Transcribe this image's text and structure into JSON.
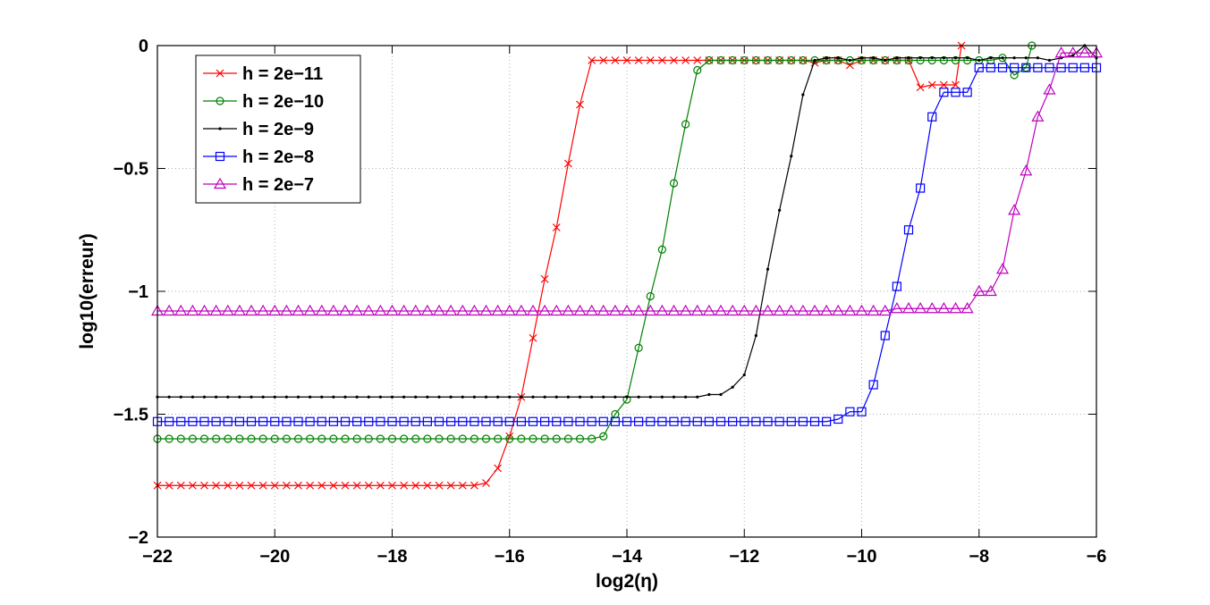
{
  "chart_data": {
    "type": "line",
    "title": "",
    "xlabel": "log2(η)",
    "ylabel": "log10(erreur)",
    "xlim": [
      -22,
      -6
    ],
    "ylim": [
      -2,
      0
    ],
    "xticks": [
      -22,
      -20,
      -18,
      -16,
      -14,
      -12,
      -10,
      -8,
      -6
    ],
    "yticks": [
      0,
      -0.5,
      -1,
      -1.5,
      -2
    ],
    "xtick_labels": [
      "−22",
      "−20",
      "−18",
      "−16",
      "−14",
      "−12",
      "−10",
      "−8",
      "−6"
    ],
    "ytick_labels": [
      "0",
      "−0.5",
      "−1",
      "−1.5",
      "−2"
    ],
    "grid": true,
    "legend_position": "top-left",
    "series": [
      {
        "name": "h = 2e−11",
        "color": "#ff0000",
        "marker": "x",
        "x": [
          -22,
          -21.8,
          -21.6,
          -21.4,
          -21.2,
          -21,
          -20.8,
          -20.6,
          -20.4,
          -20.2,
          -20,
          -19.8,
          -19.6,
          -19.4,
          -19.2,
          -19,
          -18.8,
          -18.6,
          -18.4,
          -18.2,
          -18,
          -17.8,
          -17.6,
          -17.4,
          -17.2,
          -17,
          -16.8,
          -16.6,
          -16.4,
          -16.2,
          -16,
          -15.8,
          -15.6,
          -15.4,
          -15.2,
          -15,
          -14.8,
          -14.6,
          -14.4,
          -14.2,
          -14,
          -13.8,
          -13.6,
          -13.4,
          -13.2,
          -13,
          -12.8,
          -12.6,
          -12.4,
          -12.2,
          -12,
          -11.8,
          -11.6,
          -11.4,
          -11.2,
          -11,
          -10.8,
          -10.6,
          -10.4,
          -10.2,
          -10,
          -9.8,
          -9.6,
          -9.4,
          -9.2,
          -9,
          -8.8,
          -8.6,
          -8.4,
          -8.3
        ],
        "y": [
          -1.79,
          -1.79,
          -1.79,
          -1.79,
          -1.79,
          -1.79,
          -1.79,
          -1.79,
          -1.79,
          -1.79,
          -1.79,
          -1.79,
          -1.79,
          -1.79,
          -1.79,
          -1.79,
          -1.79,
          -1.79,
          -1.79,
          -1.79,
          -1.79,
          -1.79,
          -1.79,
          -1.79,
          -1.79,
          -1.79,
          -1.79,
          -1.79,
          -1.78,
          -1.72,
          -1.59,
          -1.43,
          -1.19,
          -0.95,
          -0.74,
          -0.48,
          -0.24,
          -0.06,
          -0.06,
          -0.06,
          -0.06,
          -0.06,
          -0.06,
          -0.06,
          -0.06,
          -0.06,
          -0.06,
          -0.06,
          -0.06,
          -0.06,
          -0.06,
          -0.06,
          -0.06,
          -0.06,
          -0.06,
          -0.06,
          -0.07,
          -0.06,
          -0.06,
          -0.08,
          -0.06,
          -0.06,
          -0.06,
          -0.06,
          -0.06,
          -0.17,
          -0.16,
          -0.16,
          -0.16,
          0.0
        ]
      },
      {
        "name": "h = 2e−10",
        "color": "#008000",
        "marker": "o",
        "x": [
          -22,
          -21.8,
          -21.6,
          -21.4,
          -21.2,
          -21,
          -20.8,
          -20.6,
          -20.4,
          -20.2,
          -20,
          -19.8,
          -19.6,
          -19.4,
          -19.2,
          -19,
          -18.8,
          -18.6,
          -18.4,
          -18.2,
          -18,
          -17.8,
          -17.6,
          -17.4,
          -17.2,
          -17,
          -16.8,
          -16.6,
          -16.4,
          -16.2,
          -16,
          -15.8,
          -15.6,
          -15.4,
          -15.2,
          -15,
          -14.8,
          -14.6,
          -14.4,
          -14.2,
          -14,
          -13.8,
          -13.6,
          -13.4,
          -13.2,
          -13,
          -12.8,
          -12.6,
          -12.4,
          -12.2,
          -12,
          -11.8,
          -11.6,
          -11.4,
          -11.2,
          -11,
          -10.8,
          -10.6,
          -10.4,
          -10.2,
          -10,
          -9.8,
          -9.6,
          -9.4,
          -9.2,
          -9,
          -8.8,
          -8.6,
          -8.4,
          -8.2,
          -8,
          -7.8,
          -7.6,
          -7.4,
          -7.2,
          -7.1
        ],
        "y": [
          -1.6,
          -1.6,
          -1.6,
          -1.6,
          -1.6,
          -1.6,
          -1.6,
          -1.6,
          -1.6,
          -1.6,
          -1.6,
          -1.6,
          -1.6,
          -1.6,
          -1.6,
          -1.6,
          -1.6,
          -1.6,
          -1.6,
          -1.6,
          -1.6,
          -1.6,
          -1.6,
          -1.6,
          -1.6,
          -1.6,
          -1.6,
          -1.6,
          -1.6,
          -1.6,
          -1.6,
          -1.6,
          -1.6,
          -1.6,
          -1.6,
          -1.6,
          -1.6,
          -1.6,
          -1.59,
          -1.5,
          -1.44,
          -1.23,
          -1.02,
          -0.83,
          -0.56,
          -0.32,
          -0.1,
          -0.06,
          -0.06,
          -0.06,
          -0.06,
          -0.06,
          -0.06,
          -0.06,
          -0.06,
          -0.06,
          -0.06,
          -0.06,
          -0.06,
          -0.06,
          -0.06,
          -0.06,
          -0.06,
          -0.06,
          -0.06,
          -0.06,
          -0.06,
          -0.06,
          -0.06,
          -0.06,
          -0.06,
          -0.06,
          -0.05,
          -0.12,
          -0.09,
          0.0
        ]
      },
      {
        "name": "h = 2e−9",
        "color": "#000000",
        "marker": ".",
        "x": [
          -22,
          -21.8,
          -21.6,
          -21.4,
          -21.2,
          -21,
          -20.8,
          -20.6,
          -20.4,
          -20.2,
          -20,
          -19.8,
          -19.6,
          -19.4,
          -19.2,
          -19,
          -18.8,
          -18.6,
          -18.4,
          -18.2,
          -18,
          -17.8,
          -17.6,
          -17.4,
          -17.2,
          -17,
          -16.8,
          -16.6,
          -16.4,
          -16.2,
          -16,
          -15.8,
          -15.6,
          -15.4,
          -15.2,
          -15,
          -14.8,
          -14.6,
          -14.4,
          -14.2,
          -14,
          -13.8,
          -13.6,
          -13.4,
          -13.2,
          -13,
          -12.8,
          -12.6,
          -12.4,
          -12.2,
          -12,
          -11.8,
          -11.6,
          -11.4,
          -11.2,
          -11,
          -10.8,
          -10.6,
          -10.4,
          -10.2,
          -10,
          -9.8,
          -9.6,
          -9.4,
          -9.2,
          -9,
          -8.8,
          -8.6,
          -8.4,
          -8.2,
          -8,
          -7.8,
          -7.6,
          -7.4,
          -7.2,
          -7,
          -6.8,
          -6.6,
          -6.4,
          -6.2,
          -6
        ],
        "y": [
          -1.43,
          -1.43,
          -1.43,
          -1.43,
          -1.43,
          -1.43,
          -1.43,
          -1.43,
          -1.43,
          -1.43,
          -1.43,
          -1.43,
          -1.43,
          -1.43,
          -1.43,
          -1.43,
          -1.43,
          -1.43,
          -1.43,
          -1.43,
          -1.43,
          -1.43,
          -1.43,
          -1.43,
          -1.43,
          -1.43,
          -1.43,
          -1.43,
          -1.43,
          -1.43,
          -1.43,
          -1.43,
          -1.43,
          -1.43,
          -1.43,
          -1.43,
          -1.43,
          -1.43,
          -1.43,
          -1.43,
          -1.43,
          -1.43,
          -1.43,
          -1.43,
          -1.43,
          -1.43,
          -1.43,
          -1.42,
          -1.42,
          -1.39,
          -1.34,
          -1.18,
          -0.91,
          -0.67,
          -0.45,
          -0.2,
          -0.06,
          -0.05,
          -0.05,
          -0.06,
          -0.05,
          -0.05,
          -0.06,
          -0.05,
          -0.05,
          -0.05,
          -0.05,
          -0.05,
          -0.05,
          -0.05,
          -0.06,
          -0.05,
          -0.05,
          -0.05,
          -0.05,
          -0.05,
          -0.06,
          -0.05,
          -0.04,
          0.0,
          -0.05
        ]
      },
      {
        "name": "h = 2e−8",
        "color": "#0000ff",
        "marker": "s",
        "x": [
          -22,
          -21.8,
          -21.6,
          -21.4,
          -21.2,
          -21,
          -20.8,
          -20.6,
          -20.4,
          -20.2,
          -20,
          -19.8,
          -19.6,
          -19.4,
          -19.2,
          -19,
          -18.8,
          -18.6,
          -18.4,
          -18.2,
          -18,
          -17.8,
          -17.6,
          -17.4,
          -17.2,
          -17,
          -16.8,
          -16.6,
          -16.4,
          -16.2,
          -16,
          -15.8,
          -15.6,
          -15.4,
          -15.2,
          -15,
          -14.8,
          -14.6,
          -14.4,
          -14.2,
          -14,
          -13.8,
          -13.6,
          -13.4,
          -13.2,
          -13,
          -12.8,
          -12.6,
          -12.4,
          -12.2,
          -12,
          -11.8,
          -11.6,
          -11.4,
          -11.2,
          -11,
          -10.8,
          -10.6,
          -10.4,
          -10.2,
          -10,
          -9.8,
          -9.6,
          -9.4,
          -9.2,
          -9,
          -8.8,
          -8.6,
          -8.4,
          -8.2,
          -8,
          -7.8,
          -7.6,
          -7.4,
          -7.2,
          -7,
          -6.8,
          -6.6,
          -6.4,
          -6.2,
          -6
        ],
        "y": [
          -1.53,
          -1.53,
          -1.53,
          -1.53,
          -1.53,
          -1.53,
          -1.53,
          -1.53,
          -1.53,
          -1.53,
          -1.53,
          -1.53,
          -1.53,
          -1.53,
          -1.53,
          -1.53,
          -1.53,
          -1.53,
          -1.53,
          -1.53,
          -1.53,
          -1.53,
          -1.53,
          -1.53,
          -1.53,
          -1.53,
          -1.53,
          -1.53,
          -1.53,
          -1.53,
          -1.53,
          -1.53,
          -1.53,
          -1.53,
          -1.53,
          -1.53,
          -1.53,
          -1.53,
          -1.53,
          -1.53,
          -1.53,
          -1.53,
          -1.53,
          -1.53,
          -1.53,
          -1.53,
          -1.53,
          -1.53,
          -1.53,
          -1.53,
          -1.53,
          -1.53,
          -1.53,
          -1.53,
          -1.53,
          -1.53,
          -1.53,
          -1.53,
          -1.52,
          -1.49,
          -1.49,
          -1.38,
          -1.18,
          -0.98,
          -0.75,
          -0.58,
          -0.29,
          -0.19,
          -0.19,
          -0.19,
          -0.09,
          -0.09,
          -0.09,
          -0.09,
          -0.09,
          -0.09,
          -0.09,
          -0.09,
          -0.09,
          -0.09,
          -0.09
        ]
      },
      {
        "name": "h = 2e−7",
        "color": "#bf00bf",
        "marker": "^",
        "x": [
          -22,
          -21.8,
          -21.6,
          -21.4,
          -21.2,
          -21,
          -20.8,
          -20.6,
          -20.4,
          -20.2,
          -20,
          -19.8,
          -19.6,
          -19.4,
          -19.2,
          -19,
          -18.8,
          -18.6,
          -18.4,
          -18.2,
          -18,
          -17.8,
          -17.6,
          -17.4,
          -17.2,
          -17,
          -16.8,
          -16.6,
          -16.4,
          -16.2,
          -16,
          -15.8,
          -15.6,
          -15.4,
          -15.2,
          -15,
          -14.8,
          -14.6,
          -14.4,
          -14.2,
          -14,
          -13.8,
          -13.6,
          -13.4,
          -13.2,
          -13,
          -12.8,
          -12.6,
          -12.4,
          -12.2,
          -12,
          -11.8,
          -11.6,
          -11.4,
          -11.2,
          -11,
          -10.8,
          -10.6,
          -10.4,
          -10.2,
          -10,
          -9.8,
          -9.6,
          -9.4,
          -9.2,
          -9,
          -8.8,
          -8.6,
          -8.4,
          -8.2,
          -8,
          -7.8,
          -7.6,
          -7.4,
          -7.2,
          -7,
          -6.8,
          -6.6,
          -6.4,
          -6.2,
          -6
        ],
        "y": [
          -1.08,
          -1.08,
          -1.08,
          -1.08,
          -1.08,
          -1.08,
          -1.08,
          -1.08,
          -1.08,
          -1.08,
          -1.08,
          -1.08,
          -1.08,
          -1.08,
          -1.08,
          -1.08,
          -1.08,
          -1.08,
          -1.08,
          -1.08,
          -1.08,
          -1.08,
          -1.08,
          -1.08,
          -1.08,
          -1.08,
          -1.08,
          -1.08,
          -1.08,
          -1.08,
          -1.08,
          -1.08,
          -1.08,
          -1.08,
          -1.08,
          -1.08,
          -1.08,
          -1.08,
          -1.08,
          -1.08,
          -1.08,
          -1.08,
          -1.08,
          -1.08,
          -1.08,
          -1.08,
          -1.08,
          -1.08,
          -1.08,
          -1.08,
          -1.08,
          -1.08,
          -1.08,
          -1.08,
          -1.08,
          -1.08,
          -1.08,
          -1.08,
          -1.08,
          -1.08,
          -1.08,
          -1.08,
          -1.08,
          -1.07,
          -1.07,
          -1.07,
          -1.07,
          -1.07,
          -1.07,
          -1.07,
          -1.0,
          -1.0,
          -0.91,
          -0.67,
          -0.51,
          -0.29,
          -0.18,
          -0.03,
          -0.03,
          -0.03,
          -0.03
        ]
      }
    ]
  }
}
